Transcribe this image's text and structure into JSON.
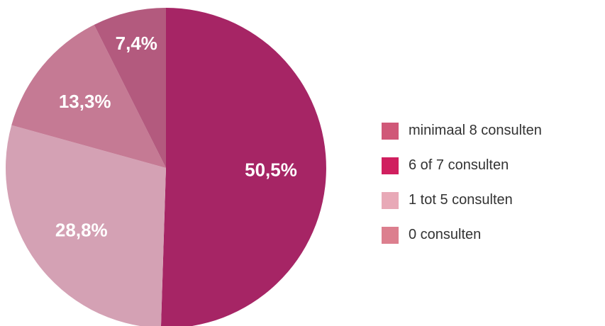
{
  "chart_data": {
    "type": "pie",
    "start_angle_deg": 0,
    "direction": "clockwise",
    "slices": [
      {
        "label": "6 of 7 consulten",
        "value": 50.5,
        "value_label": "50,5%",
        "color": "#a62565"
      },
      {
        "label": "1 tot 5 consulten",
        "value": 28.8,
        "value_label": "28,8%",
        "color": "#d4a1b4"
      },
      {
        "label": "0 consulten",
        "value": 13.3,
        "value_label": "13,3%",
        "color": "#c57a94"
      },
      {
        "label": "minimaal 8 consulten",
        "value": 7.4,
        "value_label": "7,4%",
        "color": "#b35a7e"
      }
    ],
    "legend": {
      "placement": "right",
      "entries": [
        {
          "label": "minimaal 8 consulten",
          "color": "#d05878"
        },
        {
          "label": "6 of 7 consulten",
          "color": "#d01f5f"
        },
        {
          "label": "1 tot 5 consulten",
          "color": "#e8a9b7"
        },
        {
          "label": "0 consulten",
          "color": "#dc7f8e"
        }
      ]
    }
  }
}
